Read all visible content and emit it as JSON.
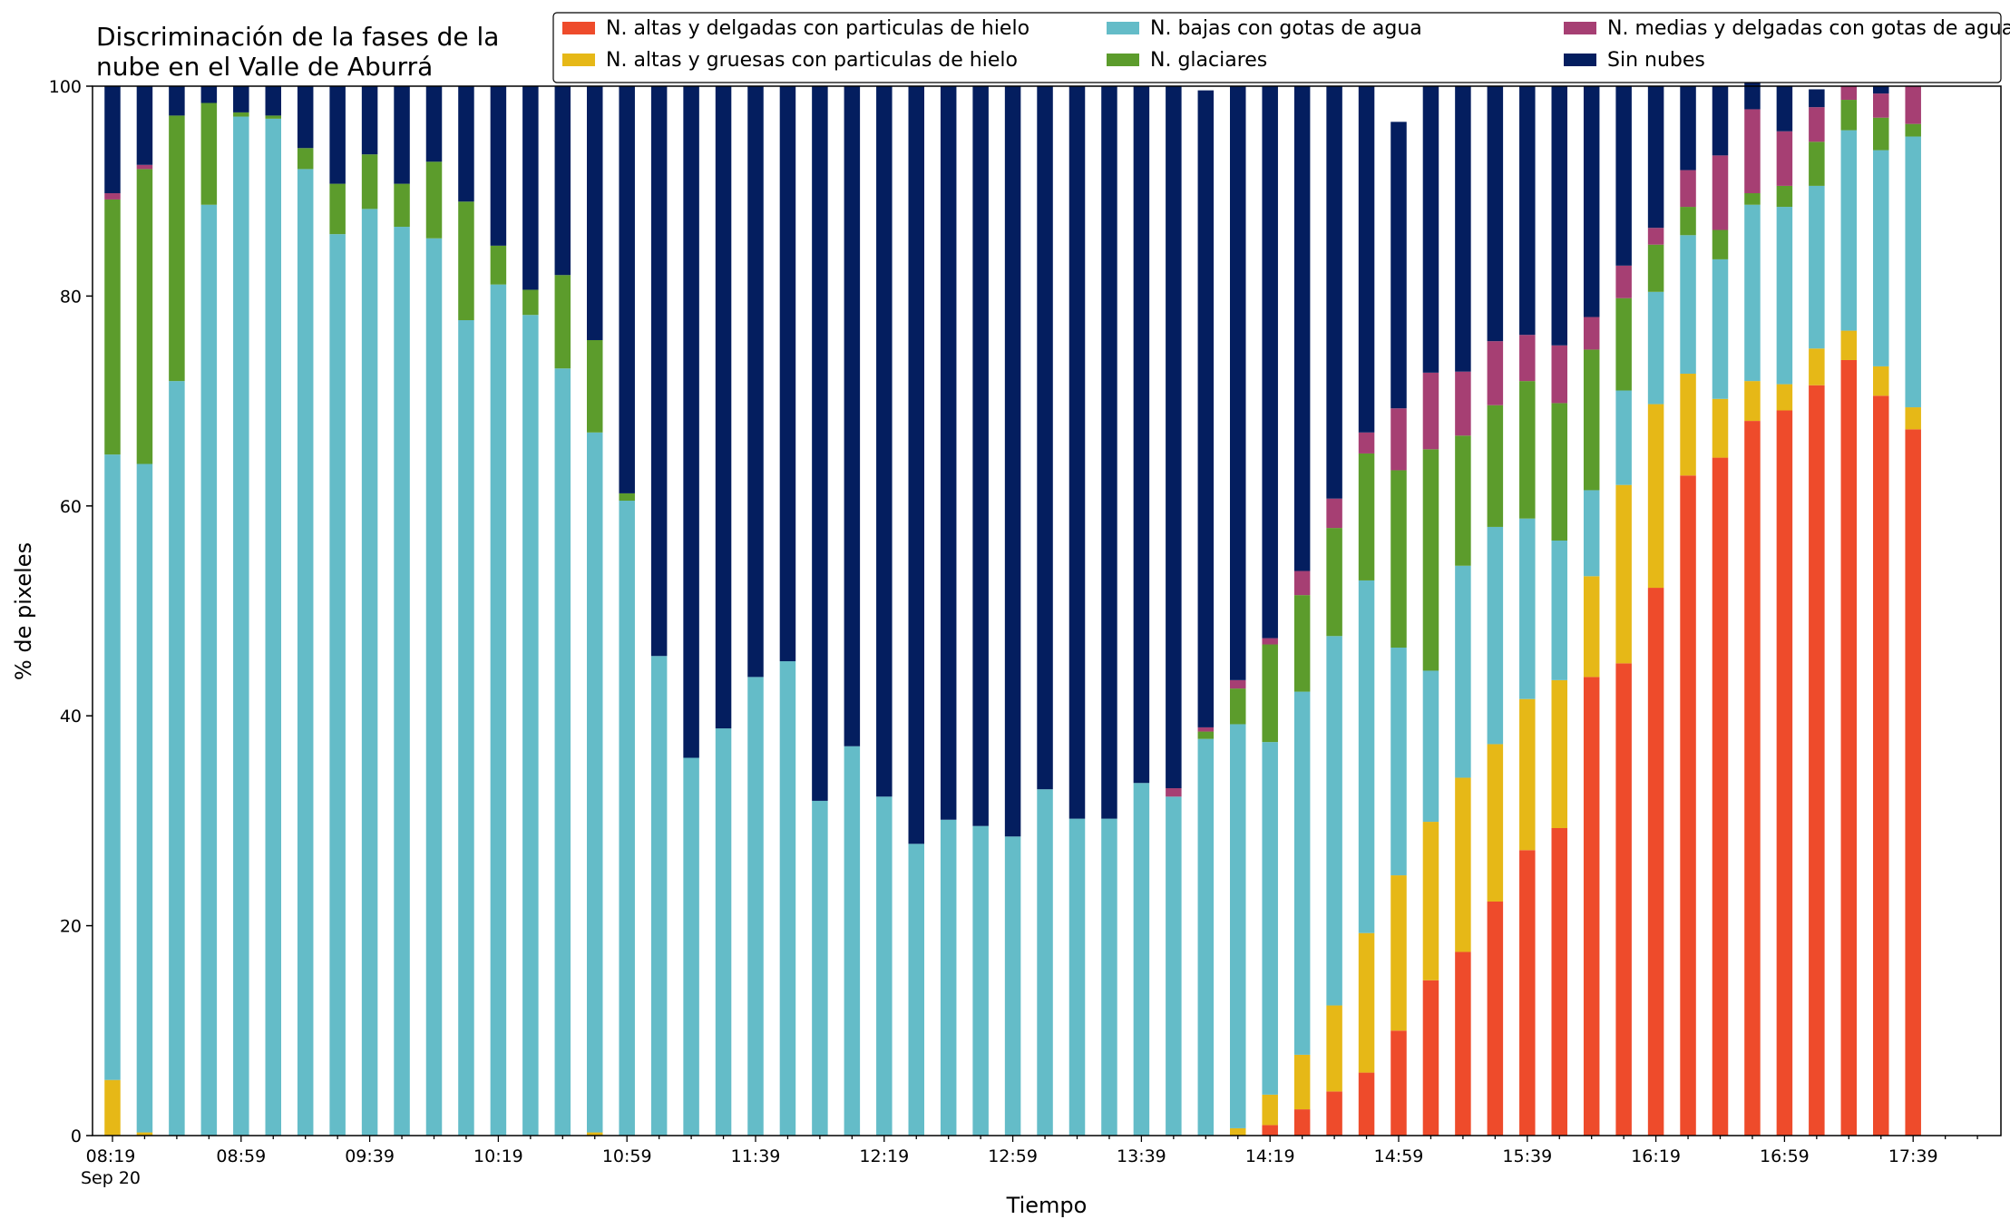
{
  "chart_data": {
    "type": "bar",
    "stacked": true,
    "title_lines": [
      "Discriminación de la fases de la",
      "nube en el Valle de Aburrá"
    ],
    "xlabel": "Tiempo",
    "ylabel": "% de pixeles",
    "ylim": [
      0,
      100
    ],
    "yticks": [
      "0",
      "20",
      "40",
      "60",
      "80",
      "100"
    ],
    "x_tick_labels": [
      "08:19",
      "08:59",
      "09:39",
      "10:19",
      "10:59",
      "11:39",
      "12:19",
      "12:59",
      "13:39",
      "14:19",
      "14:59",
      "15:39",
      "16:19",
      "16:59",
      "17:39"
    ],
    "x_date_label": "Sep 20",
    "grid": false,
    "legend_position": "top-right",
    "legend": [
      "N. altas y delgadas con particulas de hielo",
      "N. altas y gruesas con particulas de hielo",
      "N. bajas con gotas de agua",
      "N. glaciares",
      "N. medias y delgadas con gotas de agua",
      "Sin nubes"
    ],
    "x_first": "08:19",
    "x_step_minutes": 10,
    "series": [
      {
        "name": "N. altas y delgadas con particulas de hielo",
        "color": "#ee4b2b",
        "values": [
          0,
          0,
          0,
          0,
          0,
          0,
          0,
          0,
          0,
          0,
          0,
          0,
          0,
          0,
          0,
          0,
          0,
          0,
          0,
          0,
          0,
          0,
          0,
          0,
          0,
          0,
          0,
          0,
          0,
          0,
          0,
          0,
          0,
          0,
          0,
          0,
          1,
          2.5,
          4.2,
          6,
          10,
          14.8,
          17.5,
          22.3,
          27.2,
          29.3,
          43.7,
          45,
          52.2,
          62.9,
          64.6,
          68.1,
          69.1,
          71.5,
          73.9,
          70.5,
          67.3
        ]
      },
      {
        "name": "N. altas y gruesas con particulas de hielo",
        "color": "#e6b817",
        "values": [
          5.3,
          0.3,
          0,
          0,
          0,
          0,
          0,
          0,
          0,
          0,
          0,
          0,
          0,
          0,
          0,
          0.3,
          0,
          0,
          0,
          0,
          0,
          0,
          0,
          0,
          0,
          0,
          0,
          0,
          0,
          0,
          0,
          0,
          0,
          0,
          0,
          0.7,
          2.9,
          5.2,
          8.2,
          13.3,
          14.8,
          15.1,
          16.6,
          15,
          14.4,
          14.1,
          9.6,
          17,
          17.5,
          9.7,
          5.6,
          3.8,
          2.5,
          3.5,
          2.8,
          2.8,
          2.1
        ]
      },
      {
        "name": "N. bajas con gotas de agua",
        "color": "#64bcc8",
        "values": [
          59.6,
          63.7,
          71.9,
          88.7,
          97.1,
          96.9,
          92.1,
          85.9,
          88.3,
          86.6,
          85.5,
          77.7,
          81.1,
          78.2,
          73.1,
          66.7,
          60.5,
          45.7,
          36,
          38.8,
          43.7,
          45.2,
          31.9,
          37.1,
          32.3,
          27.8,
          30.1,
          29.5,
          28.5,
          33,
          30.2,
          30.2,
          33.6,
          32.3,
          37.8,
          38.5,
          33.6,
          34.6,
          35.2,
          33.6,
          21.7,
          14.4,
          20.2,
          20.7,
          17.2,
          13.3,
          8.2,
          9,
          10.7,
          13.2,
          13.3,
          16.8,
          16.9,
          15.5,
          19.1,
          20.6,
          25.8
        ]
      },
      {
        "name": "N. glaciares",
        "color": "#5c9c2c",
        "values": [
          24.3,
          28.1,
          25.3,
          9.7,
          0.4,
          0.3,
          2,
          4.8,
          5.2,
          4.1,
          7.3,
          11.3,
          3.7,
          2.4,
          8.9,
          8.8,
          0.7,
          0,
          0,
          0,
          0,
          0,
          0,
          0,
          0,
          0,
          0,
          0,
          0,
          0,
          0,
          0,
          0,
          0,
          0.7,
          3.4,
          9.3,
          9.2,
          10.3,
          12.1,
          16.9,
          21.1,
          12.4,
          11.6,
          13.1,
          13.1,
          13.4,
          8.8,
          4.5,
          2.7,
          2.8,
          1.1,
          2,
          4.2,
          2.9,
          3.1,
          1.2
        ]
      },
      {
        "name": "N. medias y delgadas con gotas de agua",
        "color": "#a63f73",
        "values": [
          0.6,
          0.4,
          0,
          0,
          0,
          0,
          0,
          0,
          0,
          0,
          0,
          0,
          0,
          0,
          0,
          0,
          0,
          0,
          0,
          0,
          0,
          0,
          0,
          0,
          0,
          0,
          0,
          0,
          0,
          0,
          0,
          0,
          0,
          0.8,
          0.4,
          0.8,
          0.6,
          2.3,
          2.8,
          2,
          5.9,
          7.3,
          6.1,
          6.1,
          4.4,
          5.5,
          3.1,
          3.1,
          1.6,
          3.5,
          7.1,
          8,
          5.2,
          3.3,
          1.3,
          2.3,
          3.6
        ]
      },
      {
        "name": "Sin nubes",
        "color": "#041e5f",
        "values": [
          10.2,
          7.5,
          2.8,
          1.6,
          2.5,
          2.8,
          5.9,
          9.3,
          6.5,
          9.3,
          7.2,
          11,
          15.2,
          19.4,
          18,
          24.2,
          38.8,
          54.3,
          64,
          61.2,
          56.3,
          54.8,
          68.1,
          62.9,
          67.7,
          72.2,
          69.9,
          70.5,
          71.5,
          67,
          69.8,
          69.8,
          66.4,
          66.9,
          60.7,
          56.6,
          52.6,
          46.2,
          39.3,
          33,
          27.3,
          27.3,
          27.2,
          24.3,
          23.7,
          24.7,
          22,
          17.1,
          13.5,
          8,
          6.6,
          6.2,
          4.3,
          1.7,
          0,
          0.7,
          0
        ]
      }
    ]
  }
}
